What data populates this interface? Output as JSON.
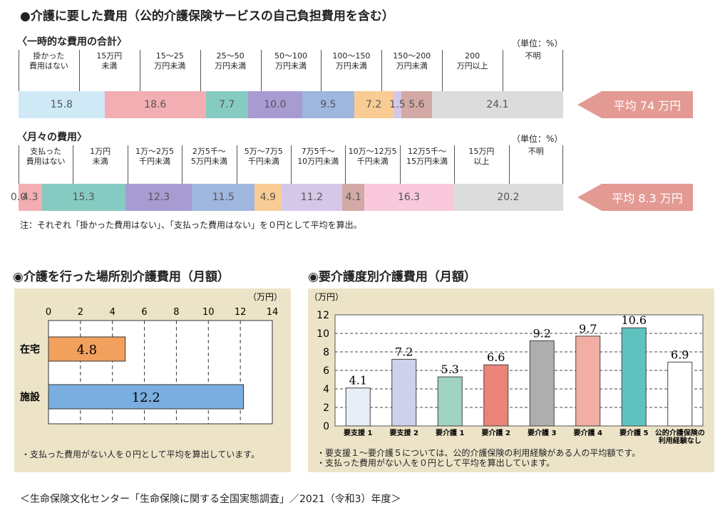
{
  "main_title": "●介護に要した費用（公的介護保険サービスの自己負担費用を含む）",
  "onetime": {
    "title": "〈一時的な費用の合計〉",
    "unit": "（単位：%）",
    "categories": [
      "掛かった\n費用はない",
      "15万円\n未満",
      "15～25\n万円未満",
      "25～50\n万円未満",
      "50～100\n万円未満",
      "100～150\n万円未満",
      "150～200\n万円未満",
      "200\n万円以上",
      "不明"
    ],
    "values": [
      15.8,
      18.6,
      7.7,
      10.0,
      9.5,
      7.2,
      1.5,
      5.6,
      24.1
    ],
    "value_labels": [
      "15.8",
      "18.6",
      "7.7",
      "10.0",
      "9.5",
      "7.2",
      "1.5",
      "5.6",
      "24.1"
    ],
    "colors": [
      "#cfe9f6",
      "#f2aeb3",
      "#86cbc2",
      "#a89bd2",
      "#9fb6de",
      "#f8cc94",
      "#d5c7e8",
      "#d2a9a4",
      "#dcdcdc"
    ],
    "average": "平均 74 万円"
  },
  "monthly": {
    "title": "〈月々の費用〉",
    "unit": "（単位：%）",
    "categories": [
      "支払った\n費用はない",
      "1万円\n未満",
      "1万～2万5\n千円未満",
      "2万5千～\n5万円未満",
      "5万～7万5\n千円未満",
      "7万5千～\n10万円未満",
      "10万～12万5\n千円未満",
      "12万5千～\n15万円未満",
      "15万円\n以上",
      "不明"
    ],
    "values": [
      0.0,
      4.3,
      15.3,
      12.3,
      11.5,
      4.9,
      11.2,
      4.1,
      16.3,
      20.2
    ],
    "value_labels": [
      "0.0",
      "4.3",
      "15.3",
      "12.3",
      "11.5",
      "4.9",
      "11.2",
      "4.1",
      "16.3",
      "20.2"
    ],
    "colors": [
      "#cfe9f6",
      "#f2aeb3",
      "#86cbc2",
      "#a89bd2",
      "#9fb6de",
      "#f8cc94",
      "#d5c7e8",
      "#d2a9a4",
      "#f9c8dc",
      "#dcdcdc"
    ],
    "average": "平均 8.3 万円"
  },
  "note1": "注：それぞれ「掛かった費用はない」、「支払った費用はない」を０円として平均を算出。",
  "place": {
    "title": "◉介護を行った場所別介護費用（月額）",
    "unit": "（万円）",
    "note": "・支払った費用がない人を０円として平均を算出しています。"
  },
  "level": {
    "title": "◉要介護度別介護費用（月額）",
    "unit": "（万円）",
    "notes": [
      "・要支援１～要介護５については、公的介護保険の利用経験がある人の平均額です。",
      "・支払った費用がない人を０円として平均を算出しています。"
    ]
  },
  "source": "＜生命保険文化センター「生命保険に関する全国実態調査」／2021（令和3）年度＞",
  "chart_data": [
    {
      "type": "bar",
      "title": "介護を行った場所別介護費用（月額）",
      "orientation": "horizontal",
      "categories": [
        "在宅",
        "施設"
      ],
      "values": [
        4.8,
        12.2
      ],
      "ylabel": "万円",
      "xlim": [
        0,
        14
      ],
      "ticks": [
        0,
        2,
        4,
        6,
        8,
        10,
        12,
        14
      ],
      "colors": [
        "#f2a05e",
        "#7aaee0"
      ],
      "grid": true
    },
    {
      "type": "bar",
      "title": "要介護度別介護費用（月額）",
      "categories": [
        "要支援 1",
        "要支援 2",
        "要介護 1",
        "要介護 2",
        "要介護 3",
        "要介護 4",
        "要介護 5",
        "公的介護保険の\n利用経験なし"
      ],
      "values": [
        4.1,
        7.2,
        5.3,
        6.6,
        9.2,
        9.7,
        10.6,
        6.9
      ],
      "ylabel": "万円",
      "ylim": [
        0,
        12
      ],
      "ticks": [
        0,
        2,
        4,
        6,
        8,
        10,
        12
      ],
      "colors": [
        "#e8eef8",
        "#cfd0ea",
        "#9fd3c2",
        "#ea8378",
        "#aeaeae",
        "#f2aea3",
        "#5ec3be",
        "#ffffff"
      ],
      "grid": true
    }
  ]
}
